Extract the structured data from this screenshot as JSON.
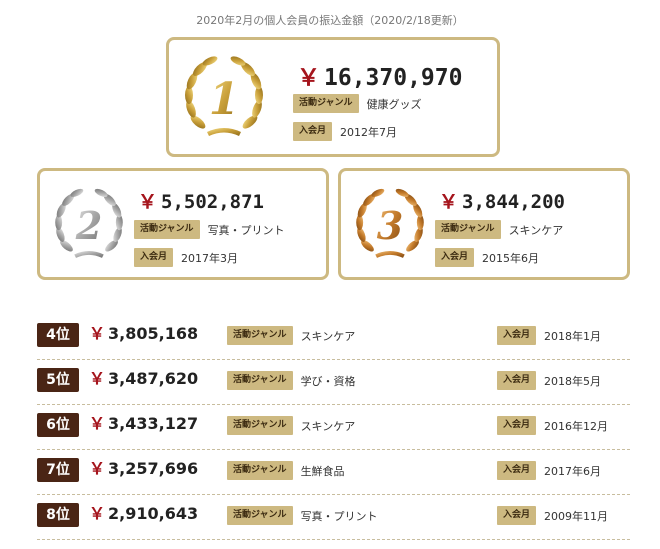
{
  "caption": "2020年2月の個人会員の振込金額（2020/2/18更新）",
  "labels": {
    "genre": "活動ジャンル",
    "joined": "入会月",
    "yen": "￥"
  },
  "colors": {
    "gold_border": "#cdb981",
    "tag_bg": "#cdb981",
    "yen": "#a5141c",
    "rank_badge": "#4a2515"
  },
  "top": [
    {
      "rank": "1",
      "amount": "16,370,970",
      "genre": "健康グッズ",
      "joined": "2012年7月",
      "wreath": "gold"
    },
    {
      "rank": "2",
      "amount": "5,502,871",
      "genre": "写真・プリント",
      "joined": "2017年3月",
      "wreath": "silver"
    },
    {
      "rank": "3",
      "amount": "3,844,200",
      "genre": "スキンケア",
      "joined": "2015年6月",
      "wreath": "bronze"
    }
  ],
  "ranks": [
    {
      "rank": "4位",
      "amount": "3,805,168",
      "genre": "スキンケア",
      "joined": "2018年1月"
    },
    {
      "rank": "5位",
      "amount": "3,487,620",
      "genre": "学び・資格",
      "joined": "2018年5月"
    },
    {
      "rank": "6位",
      "amount": "3,433,127",
      "genre": "スキンケア",
      "joined": "2016年12月"
    },
    {
      "rank": "7位",
      "amount": "3,257,696",
      "genre": "生鮮食品",
      "joined": "2017年6月"
    },
    {
      "rank": "8位",
      "amount": "2,910,643",
      "genre": "写真・プリント",
      "joined": "2009年11月"
    }
  ]
}
